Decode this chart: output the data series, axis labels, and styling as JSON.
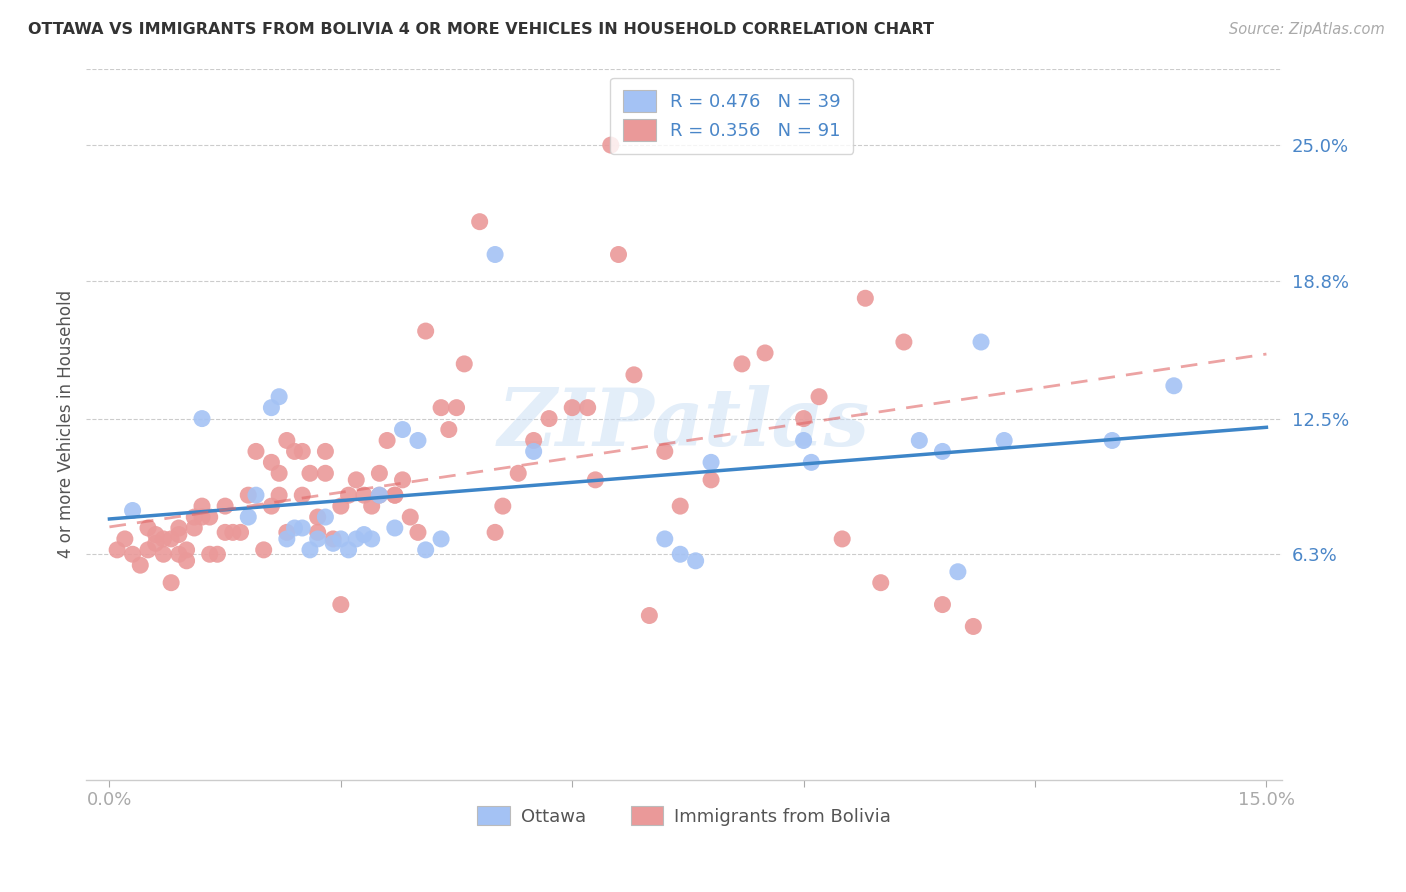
{
  "title": "OTTAWA VS IMMIGRANTS FROM BOLIVIA 4 OR MORE VEHICLES IN HOUSEHOLD CORRELATION CHART",
  "source": "Source: ZipAtlas.com",
  "ylabel": "4 or more Vehicles in Household",
  "ottawa_color": "#a4c2f4",
  "bolivia_color": "#ea9999",
  "ottawa_line_color": "#3d85c8",
  "bolivia_line_color": "#e06666",
  "watermark_text": "ZIPatlas",
  "legend_R_ottawa": "R = 0.476",
  "legend_N_ottawa": "N = 39",
  "legend_R_bolivia": "R = 0.356",
  "legend_N_bolivia": "N = 91",
  "y_tick_values_right": [
    0.063,
    0.125,
    0.188,
    0.25
  ],
  "y_tick_labels_right": [
    "6.3%",
    "12.5%",
    "18.8%",
    "25.0%"
  ],
  "xlim_min": 0.0,
  "xlim_max": 0.15,
  "ylim_min": -0.04,
  "ylim_max": 0.285,
  "ottawa_scatter_x": [
    0.003,
    0.012,
    0.018,
    0.019,
    0.021,
    0.022,
    0.023,
    0.024,
    0.025,
    0.026,
    0.027,
    0.028,
    0.029,
    0.03,
    0.031,
    0.032,
    0.033,
    0.034,
    0.035,
    0.037,
    0.038,
    0.04,
    0.041,
    0.043,
    0.05,
    0.055,
    0.072,
    0.074,
    0.076,
    0.078,
    0.09,
    0.091,
    0.105,
    0.108,
    0.11,
    0.113,
    0.116,
    0.13,
    0.138
  ],
  "ottawa_scatter_y": [
    0.083,
    0.125,
    0.08,
    0.09,
    0.13,
    0.135,
    0.07,
    0.075,
    0.075,
    0.065,
    0.07,
    0.08,
    0.068,
    0.07,
    0.065,
    0.07,
    0.072,
    0.07,
    0.09,
    0.075,
    0.12,
    0.115,
    0.065,
    0.07,
    0.2,
    0.11,
    0.07,
    0.063,
    0.06,
    0.105,
    0.115,
    0.105,
    0.115,
    0.11,
    0.055,
    0.16,
    0.115,
    0.115,
    0.14
  ],
  "bolivia_scatter_x": [
    0.001,
    0.002,
    0.003,
    0.004,
    0.005,
    0.005,
    0.006,
    0.006,
    0.007,
    0.007,
    0.008,
    0.008,
    0.009,
    0.009,
    0.009,
    0.01,
    0.01,
    0.011,
    0.011,
    0.012,
    0.012,
    0.013,
    0.013,
    0.014,
    0.015,
    0.015,
    0.016,
    0.017,
    0.018,
    0.019,
    0.02,
    0.021,
    0.021,
    0.022,
    0.022,
    0.023,
    0.023,
    0.024,
    0.025,
    0.025,
    0.026,
    0.027,
    0.027,
    0.028,
    0.028,
    0.029,
    0.03,
    0.03,
    0.031,
    0.032,
    0.033,
    0.034,
    0.035,
    0.035,
    0.036,
    0.037,
    0.037,
    0.038,
    0.039,
    0.04,
    0.041,
    0.043,
    0.044,
    0.045,
    0.046,
    0.048,
    0.05,
    0.051,
    0.053,
    0.055,
    0.057,
    0.06,
    0.062,
    0.063,
    0.065,
    0.066,
    0.068,
    0.07,
    0.072,
    0.074,
    0.078,
    0.082,
    0.085,
    0.09,
    0.092,
    0.095,
    0.098,
    0.1,
    0.103,
    0.108,
    0.112
  ],
  "bolivia_scatter_y": [
    0.065,
    0.07,
    0.063,
    0.058,
    0.065,
    0.075,
    0.068,
    0.072,
    0.063,
    0.07,
    0.05,
    0.07,
    0.063,
    0.072,
    0.075,
    0.06,
    0.065,
    0.075,
    0.08,
    0.08,
    0.085,
    0.063,
    0.08,
    0.063,
    0.073,
    0.085,
    0.073,
    0.073,
    0.09,
    0.11,
    0.065,
    0.085,
    0.105,
    0.09,
    0.1,
    0.073,
    0.115,
    0.11,
    0.09,
    0.11,
    0.1,
    0.08,
    0.073,
    0.1,
    0.11,
    0.07,
    0.04,
    0.085,
    0.09,
    0.097,
    0.09,
    0.085,
    0.09,
    0.1,
    0.115,
    0.09,
    0.09,
    0.097,
    0.08,
    0.073,
    0.165,
    0.13,
    0.12,
    0.13,
    0.15,
    0.215,
    0.073,
    0.085,
    0.1,
    0.115,
    0.125,
    0.13,
    0.13,
    0.097,
    0.25,
    0.2,
    0.145,
    0.035,
    0.11,
    0.085,
    0.097,
    0.15,
    0.155,
    0.125,
    0.135,
    0.07,
    0.18,
    0.05,
    0.16,
    0.04,
    0.03
  ]
}
